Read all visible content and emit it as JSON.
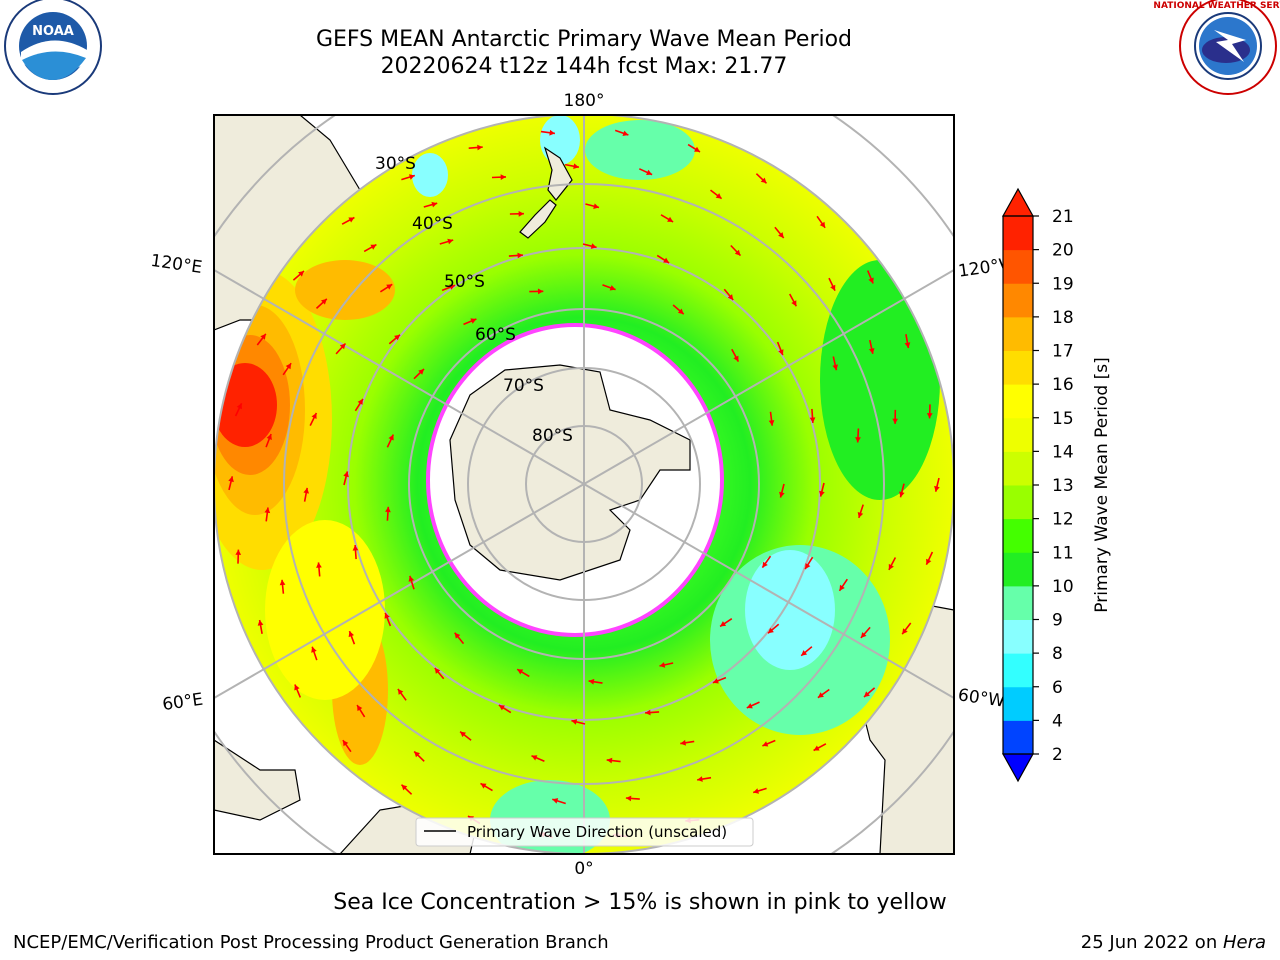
{
  "title_line1": "GEFS MEAN Antarctic Primary Wave Mean Period",
  "title_line2": "20220624 t12z 144h fcst   Max: 21.77",
  "subtitle": "Sea Ice Concentration > 15% is shown in pink to yellow",
  "footer_left": "NCEP/EMC/Verification Post Processing Product Generation Branch",
  "footer_right_date": "25 Jun 2022 on ",
  "footer_right_host": "Hera",
  "legend_label": "Primary Wave Direction (unscaled)",
  "logos": {
    "noaa": "NOAA",
    "nws_ring": "NATIONAL WEATHER SERVICE"
  },
  "map": {
    "lon_labels": {
      "top": "180°",
      "bottom": "0°",
      "left_upper": "120°E",
      "left_lower": "60°E",
      "right_upper": "120°W",
      "right_lower": "60°W"
    },
    "lat_labels": [
      "30°S",
      "40°S",
      "50°S",
      "60°S",
      "70°S",
      "80°S"
    ]
  },
  "colorbar": {
    "label": "Primary Wave Mean Period [s]",
    "ticks": [
      "2",
      "4",
      "6",
      "8",
      "9",
      "10",
      "11",
      "12",
      "13",
      "14",
      "15",
      "16",
      "17",
      "18",
      "19",
      "20",
      "21"
    ],
    "colors": [
      "#0044ff",
      "#00ccff",
      "#33ffff",
      "#88ffff",
      "#66ffaa",
      "#22ee22",
      "#44ff00",
      "#99ff00",
      "#ccff00",
      "#eeff00",
      "#ffff00",
      "#ffdd00",
      "#ffbb00",
      "#ff8800",
      "#ff5500",
      "#ff2200"
    ]
  },
  "colors": {
    "land": "#efecdc",
    "ice": "#ffffff",
    "ice_edge": "#ff44ff",
    "arrow": "#ff0000",
    "grid": "#b3b3b3"
  }
}
